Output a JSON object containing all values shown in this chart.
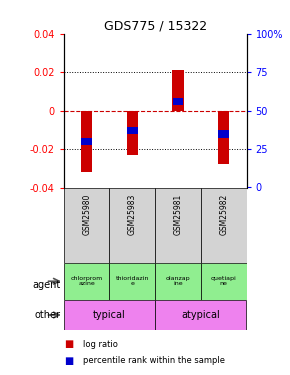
{
  "title": "GDS775 / 15322",
  "samples": [
    "GSM25980",
    "GSM25983",
    "GSM25981",
    "GSM25982"
  ],
  "log_ratios": [
    -0.032,
    -0.023,
    0.021,
    -0.028
  ],
  "percentile_ranks": [
    0.3,
    0.37,
    0.56,
    0.35
  ],
  "ylim": [
    -0.04,
    0.04
  ],
  "yticks": [
    -0.04,
    -0.02,
    0.0,
    0.02,
    0.04
  ],
  "yticks_right": [
    0,
    25,
    50,
    75,
    100
  ],
  "bar_color": "#cc0000",
  "pct_color": "#0000cc",
  "bar_width": 0.25,
  "agents": [
    "chlorprom\nazine",
    "thioridazin\ne",
    "olanzap\nine",
    "quetiapi\nne"
  ],
  "agent_bg": "#90ee90",
  "other_groups": [
    [
      "typical",
      2
    ],
    [
      "atypical",
      2
    ]
  ],
  "other_color": "#ee82ee",
  "zero_line_color": "#cc0000",
  "dotted_color": "#000000",
  "gsm_bg": "#d3d3d3"
}
